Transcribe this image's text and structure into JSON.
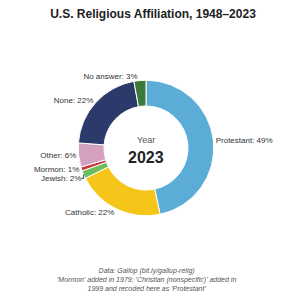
{
  "chart_data": {
    "type": "donut",
    "title": "U.S. Religious Affiliation, 1948–2023",
    "categories": [
      "Protestant",
      "Catholic",
      "Jewish",
      "Mormon",
      "Other",
      "None",
      "No answer"
    ],
    "values": [
      49,
      22,
      2,
      1,
      6,
      22,
      3
    ],
    "value_labels": [
      "Protestant: 49%",
      "Catholic: 22%",
      "Jewish: 2%",
      "Mormon: 1%",
      "Other: 6%",
      "None: 22%",
      "No answer: 3%"
    ],
    "colors": [
      "#5BACD6",
      "#F5C51A",
      "#6BBF5A",
      "#CC3333",
      "#D4A0C0",
      "#2B3A6B",
      "#3A7A3A"
    ],
    "data_labels": true,
    "annotations": [
      "Year",
      "2023"
    ],
    "notes": [
      "Data: Gallop (bit.ly/gallup-relig)",
      "'Mormon' added in 1979; 'Christian (nonspecific)' added in 1999 and recoded here as 'Protestant'"
    ]
  }
}
